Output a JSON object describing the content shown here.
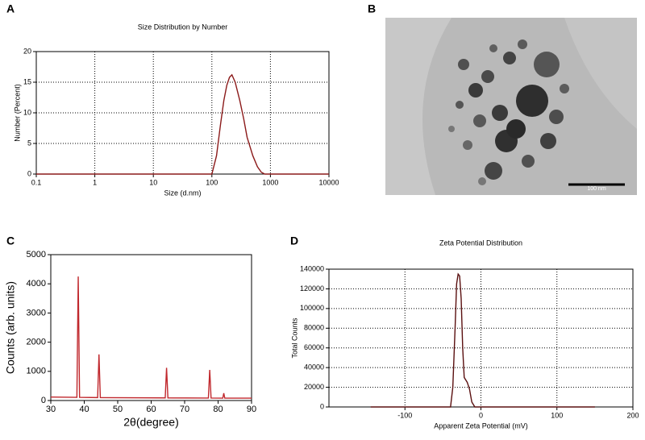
{
  "chart_data": [
    {
      "type": "line",
      "label": "A",
      "title": "Size Distribution by Number",
      "xlabel": "Size (d.nm)",
      "ylabel": "Number (Percent)",
      "xscale": "log",
      "xlim": [
        0.1,
        10000
      ],
      "xticks": [
        0.1,
        1,
        10,
        100,
        1000,
        10000
      ],
      "ylim": [
        0,
        20
      ],
      "yticks": [
        0,
        5,
        10,
        15,
        20
      ],
      "grid": true,
      "series": [
        {
          "color": "#8b1a1a",
          "x": [
            0.1,
            100,
            120,
            140,
            160,
            180,
            200,
            220,
            250,
            300,
            350,
            400,
            500,
            600,
            700,
            800,
            1000,
            10000
          ],
          "values": [
            0,
            0,
            3,
            8,
            12,
            14.5,
            15.8,
            16.2,
            15,
            12,
            9,
            6,
            3,
            1.2,
            0.3,
            0,
            0,
            0
          ]
        }
      ]
    },
    {
      "type": "line",
      "label": "C",
      "xlabel": "2θ(degree)",
      "ylabel": "Counts (arb. units)",
      "xlim": [
        30,
        90
      ],
      "xticks": [
        30,
        40,
        50,
        60,
        70,
        80,
        90
      ],
      "ylim": [
        0,
        5000
      ],
      "yticks": [
        0,
        1000,
        2000,
        3000,
        4000,
        5000
      ],
      "grid": false,
      "series": [
        {
          "color": "#c0282d",
          "x": [
            30,
            37.8,
            38.2,
            38.6,
            44.0,
            44.4,
            44.8,
            64.2,
            64.6,
            65.0,
            77.1,
            77.5,
            77.9,
            81.4,
            81.7,
            82.0,
            90
          ],
          "values": [
            120,
            110,
            4250,
            110,
            100,
            1580,
            100,
            90,
            1120,
            90,
            85,
            1050,
            85,
            80,
            250,
            80,
            80
          ]
        }
      ]
    },
    {
      "type": "line",
      "label": "D",
      "title": "Zeta Potential Distribution",
      "xlabel": "Apparent Zeta Potential (mV)",
      "ylabel": "Total Counts",
      "xlim": [
        -200,
        200
      ],
      "xticks": [
        -100,
        0,
        100,
        200
      ],
      "ylim": [
        0,
        140000
      ],
      "yticks": [
        0,
        20000,
        40000,
        60000,
        80000,
        100000,
        120000,
        140000
      ],
      "grid": true,
      "series": [
        {
          "color": "#5a1010",
          "x": [
            -145,
            -40,
            -37,
            -34,
            -32,
            -30,
            -28,
            -26,
            -24,
            -22,
            -18,
            -15,
            -12,
            -8,
            150
          ],
          "values": [
            0,
            0,
            20000,
            80000,
            125000,
            135000,
            133000,
            110000,
            60000,
            30000,
            25000,
            18000,
            5000,
            0,
            0
          ]
        }
      ]
    }
  ],
  "image": {
    "label": "B",
    "scale_bar": "100 nm"
  }
}
